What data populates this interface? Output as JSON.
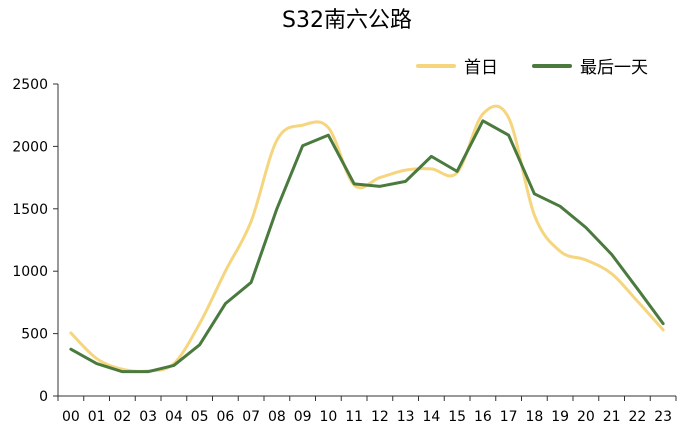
{
  "chart_data": {
    "type": "line",
    "title": "S32南六公路",
    "xlabel": "",
    "ylabel": "",
    "categories": [
      "00",
      "01",
      "02",
      "03",
      "04",
      "05",
      "06",
      "07",
      "08",
      "09",
      "10",
      "11",
      "12",
      "13",
      "14",
      "15",
      "16",
      "17",
      "18",
      "19",
      "20",
      "21",
      "22",
      "23"
    ],
    "ylim": [
      0,
      2500
    ],
    "yticks": [
      0,
      500,
      1000,
      1500,
      2000,
      2500
    ],
    "grid": false,
    "legend_position": "top-right",
    "series": [
      {
        "name": "首日",
        "color": "#F5D57E",
        "smooth": true,
        "values": [
          505,
          300,
          215,
          200,
          260,
          580,
          1000,
          1400,
          2050,
          2170,
          2150,
          1690,
          1750,
          1810,
          1820,
          1790,
          2260,
          2230,
          1450,
          1160,
          1090,
          980,
          760,
          530
        ]
      },
      {
        "name": "最后一天",
        "color": "#4A7A3E",
        "smooth": false,
        "values": [
          375,
          260,
          195,
          195,
          245,
          410,
          740,
          910,
          1500,
          2005,
          2090,
          1700,
          1680,
          1720,
          1920,
          1800,
          2205,
          2090,
          1620,
          1520,
          1350,
          1135,
          860,
          580
        ]
      }
    ]
  }
}
